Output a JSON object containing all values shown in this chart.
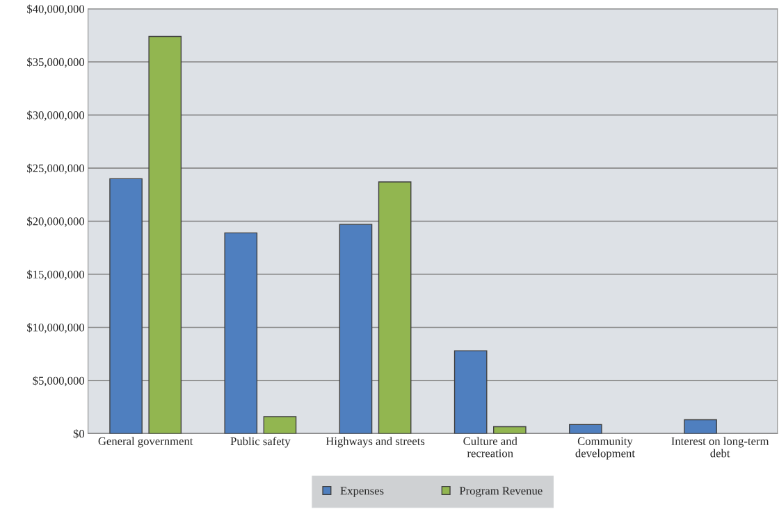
{
  "chart_data": {
    "type": "bar",
    "categories": [
      "General government",
      "Public safety",
      "Highways and streets",
      "Culture and\nrecreation",
      "Community\ndevelopment",
      "Interest on long-term\ndebt"
    ],
    "series": [
      {
        "name": "Expenses",
        "color": "#4f7fbf",
        "values": [
          24000000,
          18900000,
          19700000,
          7800000,
          850000,
          1300000
        ]
      },
      {
        "name": "Program Revenue",
        "color": "#92b650",
        "values": [
          37400000,
          1600000,
          23700000,
          650000,
          null,
          null
        ]
      }
    ],
    "ylim": [
      0,
      40000000
    ],
    "yticks": [
      {
        "value": 0,
        "label": "$0"
      },
      {
        "value": 5000000,
        "label": "$5,000,000"
      },
      {
        "value": 10000000,
        "label": "$10,000,000"
      },
      {
        "value": 15000000,
        "label": "$15,000,000"
      },
      {
        "value": 20000000,
        "label": "$20,000,000"
      },
      {
        "value": 25000000,
        "label": "$25,000,000"
      },
      {
        "value": 30000000,
        "label": "$30,000,000"
      },
      {
        "value": 35000000,
        "label": "$35,000,000"
      },
      {
        "value": 40000000,
        "label": "$40,000,000"
      }
    ],
    "grid": "y",
    "legend": "bottom"
  }
}
